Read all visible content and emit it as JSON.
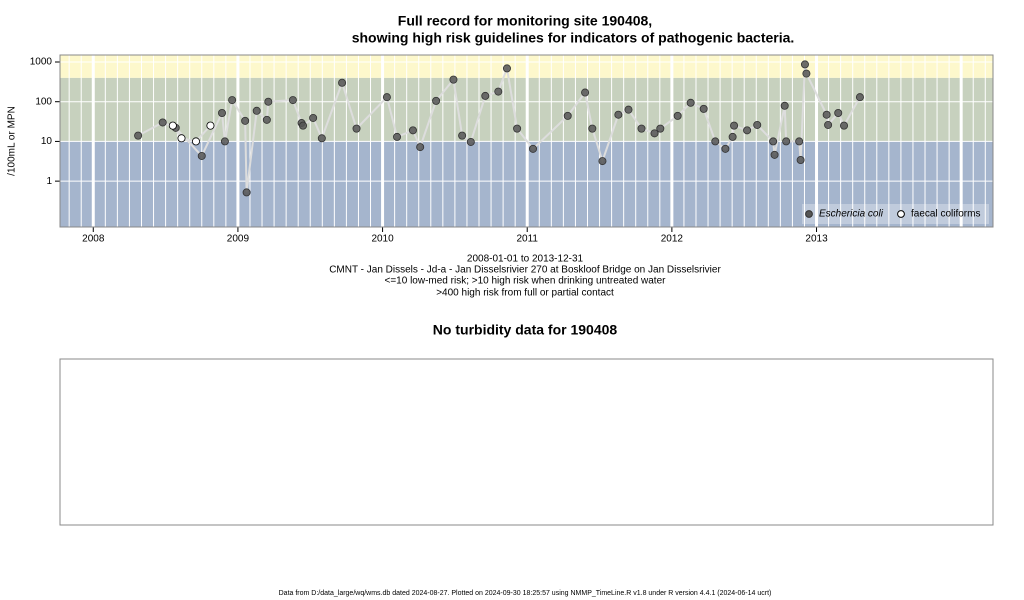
{
  "chart_data": [
    {
      "type": "scatter",
      "title": [
        "Full record for monitoring site 190408,",
        "showing high risk guidelines for indicators of pathogenic bacteria."
      ],
      "ylabel": "/100mL or MPN",
      "notes": [
        "2008-01-01 to 2013-12-31",
        "CMNT - Jan Dissels - Jd-a - Jan Disselsrivier 270 at Boskloof Bridge on Jan Disselsrivier",
        "<=10 low-med risk; >10 high risk when drinking untreated water",
        ">400 high risk from full or partial contact"
      ],
      "log_y": true,
      "xlim": [
        2007.77,
        2014.22
      ],
      "xticks": [
        2008,
        2009,
        2010,
        2011,
        2012,
        2013
      ],
      "ylim": [
        0.07,
        1500
      ],
      "yticks": [
        1,
        10,
        100,
        1000
      ],
      "thresholds": [
        10,
        400
      ],
      "band_colors": [
        "#a5b5cd",
        "#c7d1be",
        "#fdf8cc"
      ],
      "line_color": "#dddddd",
      "legend": "bottomright",
      "series": [
        {
          "name": "Eschericia coli",
          "color": "#555555",
          "filled": true,
          "x": [
            2008.31,
            2008.48,
            2008.57,
            2008.75,
            2008.89,
            2008.91,
            2008.96,
            2009.05,
            2009.06,
            2009.13,
            2009.2,
            2009.21,
            2009.38,
            2009.44,
            2009.45,
            2009.52,
            2009.58,
            2009.72,
            2009.82,
            2010.03,
            2010.1,
            2010.21,
            2010.26,
            2010.37,
            2010.49,
            2010.55,
            2010.61,
            2010.71,
            2010.8,
            2010.86,
            2010.93,
            2011.04,
            2011.28,
            2011.4,
            2011.45,
            2011.52,
            2011.63,
            2011.7,
            2011.79,
            2011.88,
            2011.92,
            2012.04,
            2012.13,
            2012.22,
            2012.3,
            2012.37,
            2012.42,
            2012.43,
            2012.52,
            2012.59,
            2012.7,
            2012.71,
            2012.78,
            2012.79,
            2012.88,
            2012.89,
            2012.92,
            2012.93,
            2013.07,
            2013.08,
            2013.15,
            2013.19,
            2013.3
          ],
          "values": [
            14,
            30,
            22,
            4.3,
            52,
            10,
            110,
            33,
            0.52,
            59,
            35,
            100,
            110,
            29,
            25,
            39,
            12,
            300,
            21,
            130,
            13,
            19,
            7.2,
            105,
            360,
            14,
            9.7,
            140,
            180,
            690,
            21,
            6.5,
            44,
            170,
            21,
            3.2,
            47,
            63,
            21,
            16,
            21,
            44,
            94,
            66,
            10,
            6.5,
            13,
            25,
            19,
            26,
            10,
            4.6,
            79,
            10,
            10,
            3.4,
            870,
            510,
            47,
            26,
            52,
            25,
            130
          ]
        },
        {
          "name": "faecal coliforms",
          "color": "#000000",
          "filled": false,
          "x": [
            2008.55,
            2008.61,
            2008.71,
            2008.81
          ],
          "values": [
            25,
            12,
            10,
            25
          ]
        }
      ]
    },
    {
      "type": "empty",
      "title": "No turbidity data for 190408"
    }
  ],
  "footer": "Data from D:/data_large/wq/wms.db dated 2024-08-27. Plotted on 2024-09-30 18:25:57 using NMMP_TimeLine.R v1.8 under R version 4.4.1 (2024-06-14 ucrt)"
}
